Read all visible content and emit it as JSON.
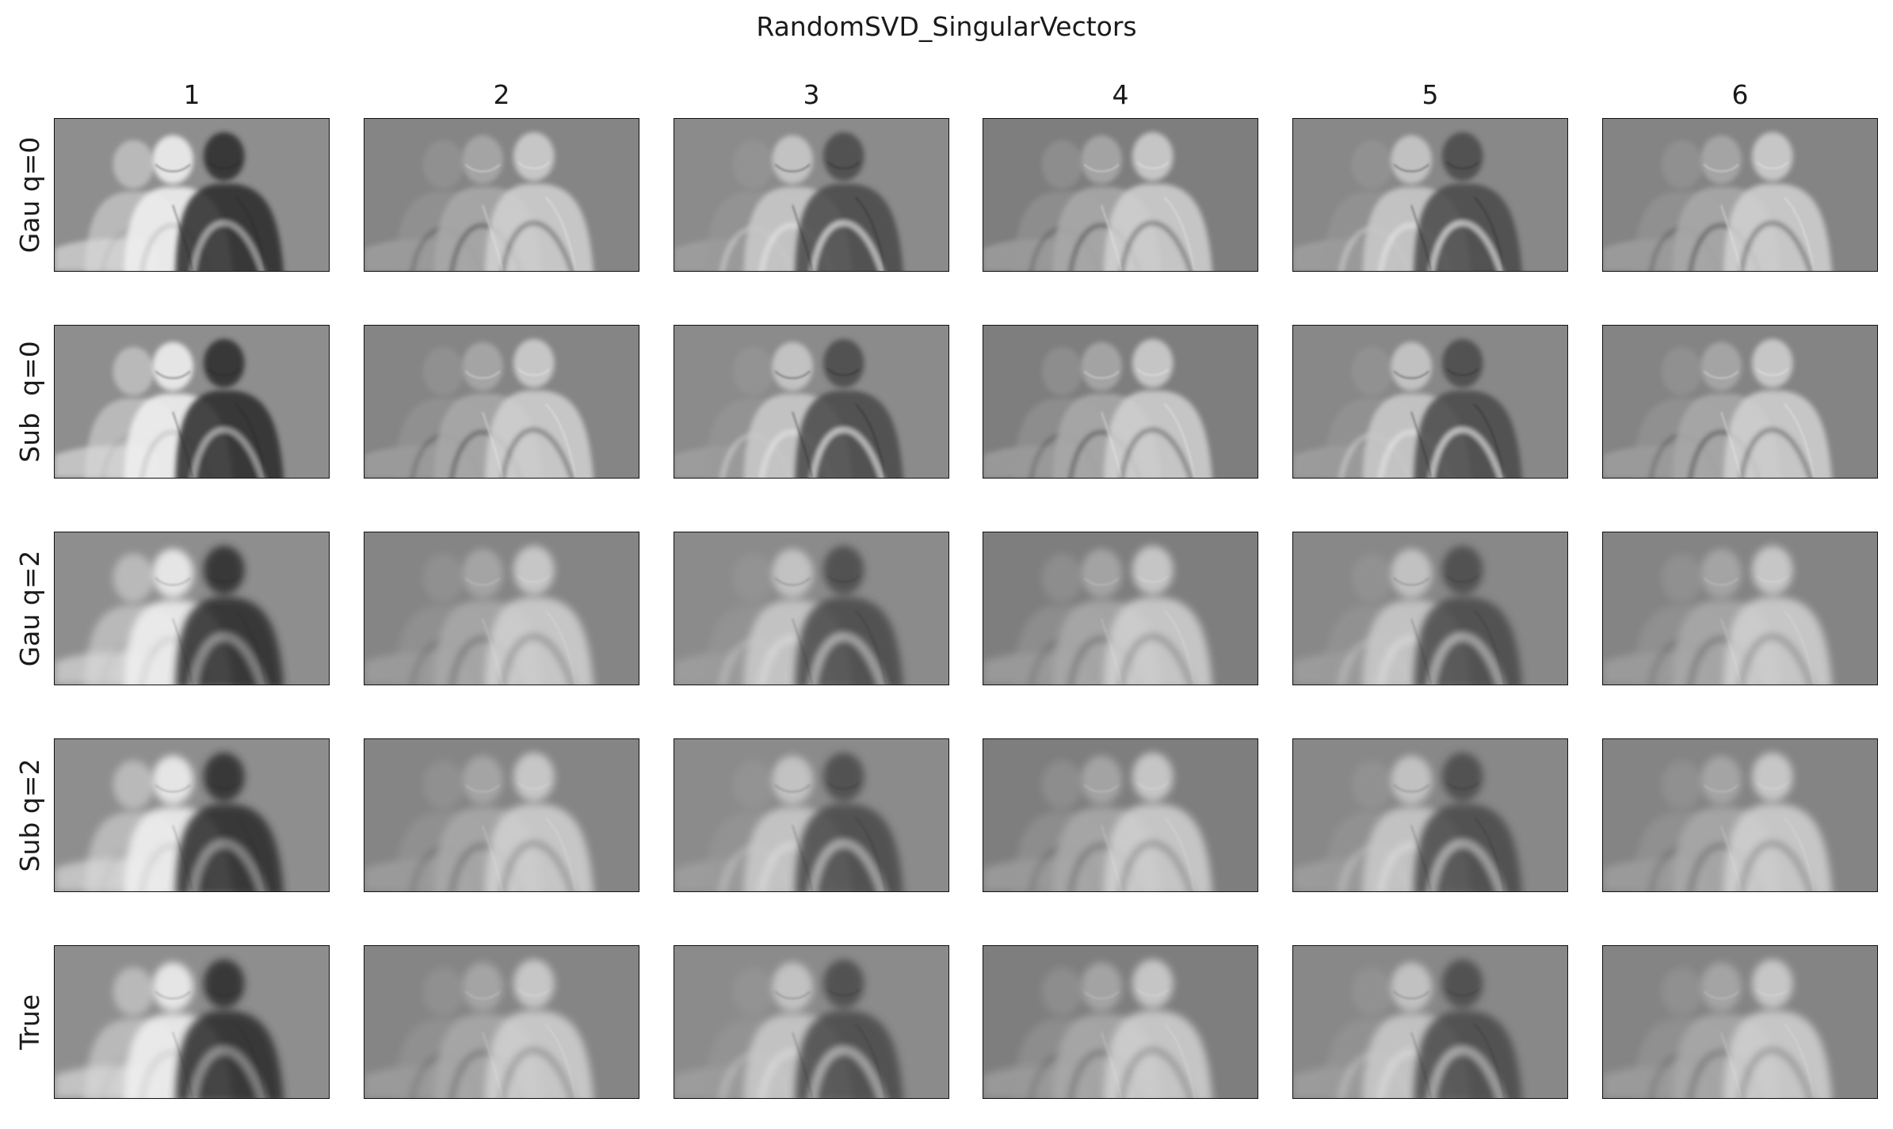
{
  "figure": {
    "title": "RandomSVD_SingularVectors",
    "columns": [
      "1",
      "2",
      "3",
      "4",
      "5",
      "6"
    ],
    "rows": [
      {
        "label": "Gau q=0"
      },
      {
        "label": "Sub  q=0"
      },
      {
        "label": "Gau q=2"
      },
      {
        "label": "Sub q=2"
      },
      {
        "label": "True"
      }
    ],
    "panel_style": "grayscale singular-vector image",
    "panel_icon": "grayscale-image-icon"
  }
}
